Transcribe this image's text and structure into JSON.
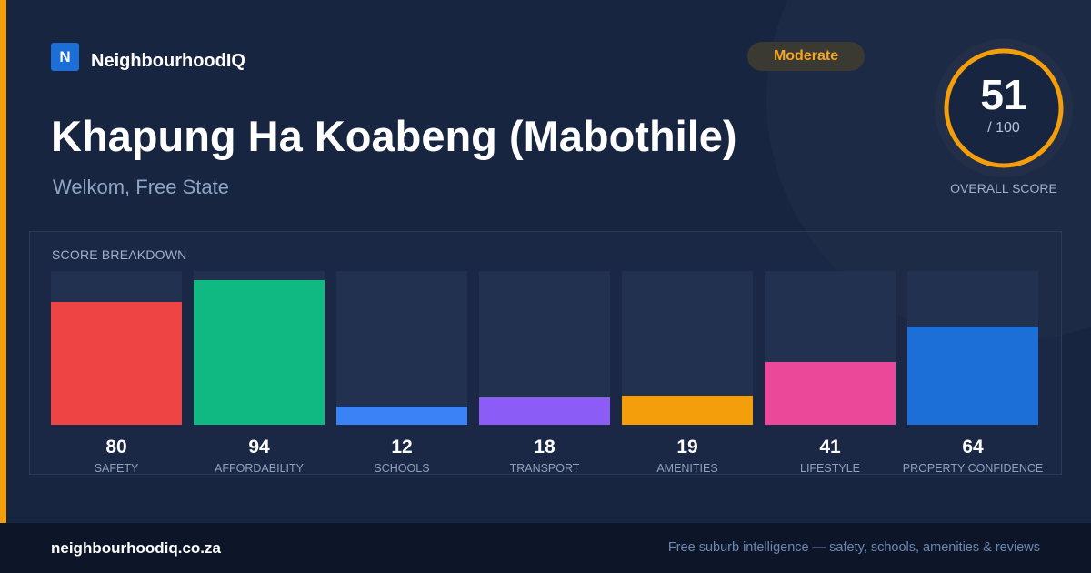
{
  "brand": {
    "logo_letter": "N",
    "name": "NeighbourhoodIQ"
  },
  "rating_badge": "Moderate",
  "suburb": {
    "title": "Khapung Ha Koabeng (Mabothile)",
    "location": "Welkom, Free State"
  },
  "overall": {
    "score": "51",
    "max_label": "/ 100",
    "score_fraction": 0.51,
    "caption": "OVERALL SCORE",
    "ring_color": "#f59e0b"
  },
  "breakdown": {
    "title": "SCORE BREAKDOWN",
    "metrics": [
      {
        "label": "SAFETY",
        "value": "80",
        "color": "#ef4444"
      },
      {
        "label": "AFFORDABILITY",
        "value": "94",
        "color": "#10b981"
      },
      {
        "label": "SCHOOLS",
        "value": "12",
        "color": "#3b82f6"
      },
      {
        "label": "TRANSPORT",
        "value": "18",
        "color": "#8b5cf6"
      },
      {
        "label": "AMENITIES",
        "value": "19",
        "color": "#f59e0b"
      },
      {
        "label": "LIFESTYLE",
        "value": "41",
        "color": "#ec4899"
      },
      {
        "label": "PROPERTY CONFIDENCE",
        "value": "64",
        "color": "#1d6fd8"
      }
    ]
  },
  "footer": {
    "url": "neighbourhoodiq.co.za",
    "tagline": "Free suburb intelligence — safety, schools, amenities & reviews"
  }
}
